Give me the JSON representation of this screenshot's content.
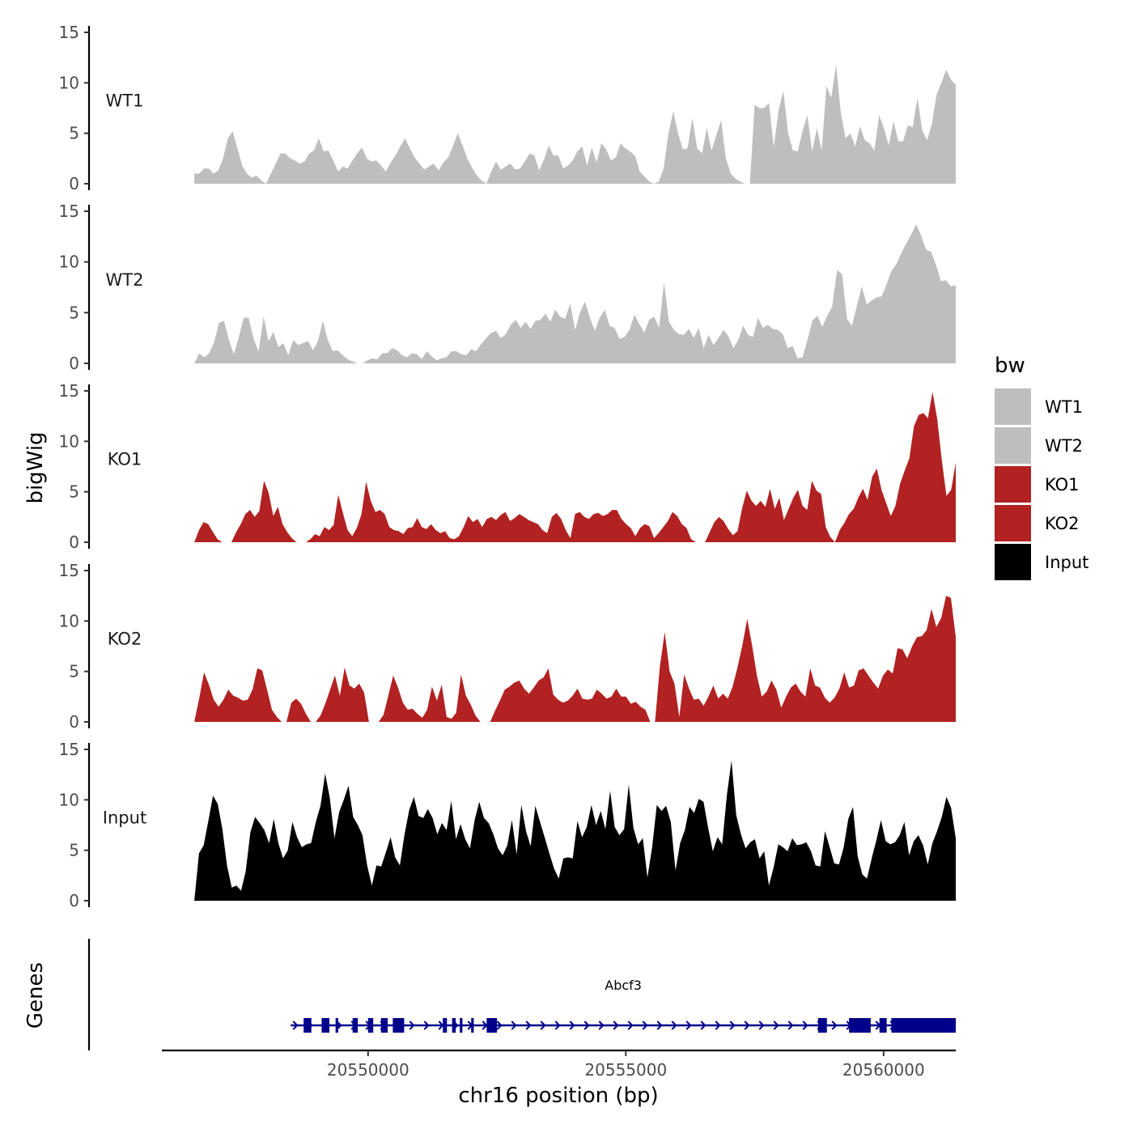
{
  "chart_data": {
    "type": "area",
    "title": "",
    "ylabel": "bigWig",
    "xlabel": "chr16 position (bp)",
    "chromosome": "chr16",
    "xlim": [
      20546000,
      20561400
    ],
    "ylim": [
      0,
      15
    ],
    "y_ticks": [
      0,
      5,
      10,
      15
    ],
    "x_ticks": [
      20550000,
      20555000,
      20560000
    ],
    "x_tick_labels": [
      "20550000",
      "20555000",
      "20560000"
    ],
    "legend": {
      "title": "bw",
      "position": "right",
      "entries": [
        {
          "name": "WT1",
          "color": "#bebebe"
        },
        {
          "name": "WT2",
          "color": "#bebebe"
        },
        {
          "name": "KO1",
          "color": "#b22222"
        },
        {
          "name": "KO2",
          "color": "#b22222"
        },
        {
          "name": "Input",
          "color": "#000000"
        }
      ]
    },
    "track_x_range": [
      20546630,
      20561400
    ],
    "series": [
      {
        "name": "WT1",
        "color": "#bebebe",
        "values": [
          1,
          1,
          1.5,
          1.5,
          1,
          1.3,
          2.5,
          4.5,
          5.2,
          3.5,
          1.8,
          1,
          0.6,
          0.8,
          0.3,
          0,
          1,
          2,
          3,
          3,
          2.5,
          2.3,
          2,
          2.2,
          3,
          3.3,
          4.5,
          3.2,
          3.3,
          2.3,
          1.2,
          1.7,
          1.5,
          2.3,
          3,
          3.6,
          2.5,
          2.2,
          2.3,
          1.8,
          1.2,
          2.1,
          2.8,
          3.7,
          4.5,
          3.5,
          2.6,
          2,
          1.4,
          1.7,
          2,
          1.3,
          2.1,
          2.6,
          3.7,
          5,
          3.8,
          2.5,
          1.6,
          0.8,
          0.3,
          0,
          1.2,
          2.2,
          1.4,
          1.7,
          2,
          1.4,
          1.5,
          2.2,
          3,
          2.8,
          1.3,
          2.4,
          3.8,
          2.8,
          2.8,
          1.5,
          1.8,
          2.3,
          3.2,
          3.7,
          1.8,
          3.6,
          2.1,
          4,
          3.4,
          2.3,
          2.6,
          4,
          3.5,
          3.2,
          2.8,
          1.2,
          0.7,
          0.2,
          0,
          0.2,
          1.5,
          5,
          7.2,
          5,
          3.4,
          3.5,
          6.5,
          3.5,
          3,
          5.5,
          3.3,
          4.8,
          6.3,
          2.5,
          1,
          0.5,
          0.2,
          0,
          0,
          7.8,
          7.5,
          7.5,
          8,
          3.6,
          7.3,
          9.2,
          5,
          3.3,
          3.2,
          5.2,
          6.8,
          3.2,
          5.5,
          3.3,
          9.7,
          8.5,
          11.8,
          7,
          4.5,
          5,
          3.7,
          5.7,
          4.3,
          4,
          3.3,
          6.8,
          5.5,
          3.8,
          6.2,
          4.2,
          4.2,
          5.8,
          5.6,
          8.5,
          5.3,
          4.3,
          5.9,
          8.8,
          10,
          11.3,
          10.3,
          9.8
        ]
      },
      {
        "name": "WT2",
        "color": "#bebebe",
        "values": [
          0,
          1,
          0.6,
          1,
          2.1,
          4,
          4.2,
          2.3,
          0.9,
          2.6,
          4.5,
          4.5,
          2.4,
          1.2,
          4.6,
          2.2,
          3.1,
          1.6,
          2,
          0.8,
          2.3,
          1.8,
          2,
          2.2,
          1.3,
          2.2,
          4.2,
          2.3,
          1.2,
          1.3,
          0.8,
          0.4,
          0.2,
          0,
          0,
          0.3,
          0.5,
          0.4,
          1,
          1,
          1.5,
          1.3,
          0.8,
          0.6,
          1,
          0.9,
          0.4,
          1.2,
          0.7,
          0.3,
          0.5,
          0.6,
          1.2,
          1.2,
          0.9,
          0.8,
          1.4,
          1.2,
          1.9,
          2.5,
          3,
          3.2,
          2.5,
          2.9,
          3.8,
          4.3,
          3.5,
          4.1,
          3.4,
          4.2,
          4.3,
          4.9,
          4.1,
          5.3,
          4.6,
          4.4,
          5.9,
          3.3,
          5,
          6.1,
          4.5,
          3.2,
          4.5,
          5.3,
          3.7,
          3.5,
          2.4,
          2.6,
          3.3,
          4.8,
          3.9,
          3,
          4.3,
          4.6,
          3.5,
          8,
          4.1,
          3.3,
          2.9,
          2.8,
          3.4,
          2.5,
          3.5,
          1.5,
          2.8,
          1.8,
          2.5,
          3.3,
          2.7,
          1.5,
          2.3,
          3.7,
          2.8,
          2.6,
          4.5,
          3.5,
          3.8,
          3.4,
          3.3,
          2.9,
          1.5,
          1.7,
          0.5,
          0.6,
          2.3,
          4.2,
          4.7,
          3.6,
          4.7,
          5.6,
          9.2,
          8.8,
          4.4,
          3.7,
          5.7,
          7.6,
          5.8,
          6.2,
          6.5,
          6.6,
          7.8,
          9.1,
          9.8,
          10.9,
          11.8,
          12.7,
          13.7,
          12.6,
          11.2,
          11,
          9.7,
          8.1,
          8.2,
          7.6,
          7.7
        ]
      },
      {
        "name": "KO1",
        "color": "#b22222",
        "values": [
          0,
          1.2,
          2,
          1.8,
          1,
          0.3,
          0,
          0,
          0,
          1,
          1.8,
          2.8,
          3.2,
          2.5,
          3.1,
          6.1,
          4.9,
          2.6,
          3.5,
          1.8,
          1,
          0.4,
          0,
          0,
          0,
          0.3,
          0.8,
          0.6,
          1.5,
          1.2,
          1.7,
          4.7,
          2.9,
          1.2,
          0.6,
          1.4,
          2.8,
          6,
          4.1,
          3,
          3.2,
          2.8,
          1.5,
          1.2,
          1.1,
          0.8,
          1.4,
          1.5,
          2.4,
          1.5,
          1.3,
          1.8,
          1.2,
          0.9,
          1.1,
          0.4,
          0.3,
          0.6,
          1.5,
          2.6,
          2,
          2.3,
          1.5,
          2.3,
          2.5,
          2.2,
          2.7,
          3,
          2.1,
          2.4,
          2.8,
          2.5,
          2.2,
          2,
          1.8,
          1.2,
          0.9,
          2.5,
          2.9,
          2.3,
          1.2,
          0.4,
          2.8,
          3,
          2.5,
          2.3,
          2.8,
          2.9,
          2.6,
          2.8,
          3.2,
          3.2,
          2.3,
          1.8,
          1.4,
          0.6,
          1.4,
          1.8,
          1.6,
          0.4,
          0.9,
          1.5,
          2.1,
          3,
          2.6,
          1.8,
          1.4,
          0.3,
          0,
          0,
          0,
          1,
          2,
          2.5,
          2.1,
          1.3,
          0.7,
          1.1,
          3.4,
          5.1,
          4.1,
          3.6,
          4.1,
          3.5,
          5.3,
          3.3,
          4.4,
          2.2,
          3.3,
          4.4,
          5.2,
          3.6,
          3.2,
          6.1,
          5.1,
          4.8,
          1.5,
          0.5,
          0,
          1.2,
          1.9,
          2.8,
          3.3,
          4.4,
          5.3,
          4.2,
          6.5,
          7.3,
          5.2,
          3.9,
          2.6,
          3.6,
          5.8,
          7.1,
          8.3,
          11.5,
          12.6,
          12.8,
          12.3,
          14.9,
          12.2,
          8.1,
          4.6,
          5.2,
          7.9
        ]
      },
      {
        "name": "KO2",
        "color": "#b22222",
        "values": [
          0,
          2.3,
          4.9,
          3.7,
          2.2,
          1.5,
          2.2,
          3.2,
          2.6,
          2.4,
          2.1,
          2.2,
          3.2,
          5.3,
          5.1,
          3.2,
          1.2,
          0.5,
          0,
          0,
          1.9,
          2.3,
          1.8,
          0.8,
          0,
          0,
          0.6,
          1.8,
          3.2,
          4.6,
          2.6,
          5.4,
          3.6,
          3.3,
          3.8,
          2.9,
          0,
          0,
          0,
          0.7,
          2.6,
          4.6,
          3.4,
          1.9,
          1.2,
          1.3,
          0.8,
          0.4,
          1.2,
          3.5,
          2.1,
          3.7,
          0.5,
          0.3,
          0.9,
          4.7,
          2.6,
          1.7,
          0.6,
          0,
          0,
          0,
          1.1,
          2.1,
          3.2,
          3.5,
          3.9,
          4.1,
          3.3,
          2.8,
          3.4,
          4.1,
          4.4,
          5.3,
          2.7,
          2.2,
          1.9,
          2.1,
          2.6,
          3.3,
          2.3,
          2.2,
          2.3,
          3.2,
          2.8,
          2.3,
          2.5,
          3.3,
          2.5,
          2.5,
          1.8,
          2,
          1.5,
          1.2,
          0,
          0,
          5.5,
          8.9,
          5,
          3.8,
          0.5,
          4.7,
          3.3,
          2.2,
          2.3,
          1.6,
          2.5,
          3.6,
          2.3,
          2.8,
          2.3,
          3.5,
          5.4,
          7.6,
          10.2,
          7.6,
          4.6,
          2.5,
          3,
          4.1,
          3.2,
          1.4,
          2.5,
          3.4,
          3.8,
          3,
          2.5,
          5.3,
          3.6,
          3.4,
          2.4,
          1.9,
          2.4,
          3.3,
          4.9,
          3.4,
          3.6,
          5.1,
          5.3,
          4.6,
          3.9,
          3.3,
          4.6,
          5.2,
          4.8,
          7.3,
          7.2,
          6.3,
          7.5,
          8.4,
          8.5,
          9.1,
          11.2,
          9.4,
          10.3,
          12.5,
          12.3,
          8.4
        ]
      },
      {
        "name": "Input",
        "color": "#000000",
        "values": [
          0,
          4.7,
          5.5,
          7.9,
          10.4,
          9.6,
          7.1,
          3.5,
          1.3,
          1.5,
          1,
          2.9,
          6.8,
          8.3,
          7.7,
          7,
          5.7,
          8.1,
          5.7,
          4.2,
          5,
          7.8,
          6.3,
          5.3,
          5.6,
          5.7,
          7.8,
          9.4,
          12.6,
          10.2,
          6.2,
          8.8,
          10,
          11.4,
          8.3,
          7.5,
          6.5,
          3.5,
          1.5,
          3.5,
          3.4,
          4.8,
          6.3,
          4.3,
          3.5,
          6.6,
          9,
          10.3,
          8.4,
          8.2,
          9.1,
          8.2,
          6.6,
          7.7,
          7,
          9.9,
          6.1,
          7.6,
          6.1,
          5.2,
          8,
          9.8,
          8.2,
          7.7,
          6.6,
          5.2,
          4.5,
          5.5,
          8,
          4.6,
          9.5,
          6.9,
          5.4,
          9.4,
          7.8,
          6.3,
          4.7,
          3.2,
          2.2,
          4.2,
          4.3,
          4.2,
          7.9,
          6.3,
          7.3,
          9.5,
          7.5,
          8.9,
          7.1,
          10.9,
          7.3,
          6.5,
          7.1,
          11.5,
          7.2,
          5.6,
          6.2,
          2.3,
          5.3,
          9.5,
          8.9,
          9.4,
          7.8,
          3,
          5.7,
          7,
          9.3,
          8.7,
          10.1,
          9.8,
          7.2,
          4.9,
          6.3,
          5.6,
          10.5,
          13.9,
          8.5,
          6.6,
          5.2,
          5.8,
          6.1,
          4.2,
          4.9,
          1.5,
          3.3,
          5.6,
          5.3,
          4.9,
          6.2,
          5.5,
          5.6,
          5.8,
          4.9,
          3.5,
          3.4,
          6.9,
          5.3,
          3.7,
          3.6,
          5.3,
          8.1,
          9.3,
          4.4,
          2.6,
          2.2,
          4.2,
          6,
          8,
          5.9,
          5.6,
          5.8,
          6.5,
          7.8,
          4.5,
          5.9,
          6.5,
          5.5,
          3.6,
          5.7,
          6.9,
          8.3,
          10.3,
          9.2,
          6.2
        ]
      }
    ],
    "track_labels": [
      "WT1",
      "WT2",
      "KO1",
      "KO2",
      "Input"
    ],
    "gene_track": {
      "label": "Genes",
      "gene_name": "Abcf3",
      "strand": "+",
      "color": "#00008b",
      "start": 20548500,
      "end": 20561400,
      "exons": [
        [
          20548750,
          20548900
        ],
        [
          20549100,
          20549250
        ],
        [
          20549370,
          20549420
        ],
        [
          20549700,
          20549800
        ],
        [
          20550000,
          20550100
        ],
        [
          20550250,
          20550380
        ],
        [
          20550480,
          20550700
        ],
        [
          20551450,
          20551530
        ],
        [
          20551630,
          20551700
        ],
        [
          20551780,
          20551830
        ],
        [
          20552000,
          20552050
        ],
        [
          20552300,
          20552500
        ],
        [
          20558730,
          20558900
        ],
        [
          20559330,
          20559750
        ],
        [
          20559920,
          20560060
        ],
        [
          20560150,
          20561400
        ]
      ]
    }
  }
}
